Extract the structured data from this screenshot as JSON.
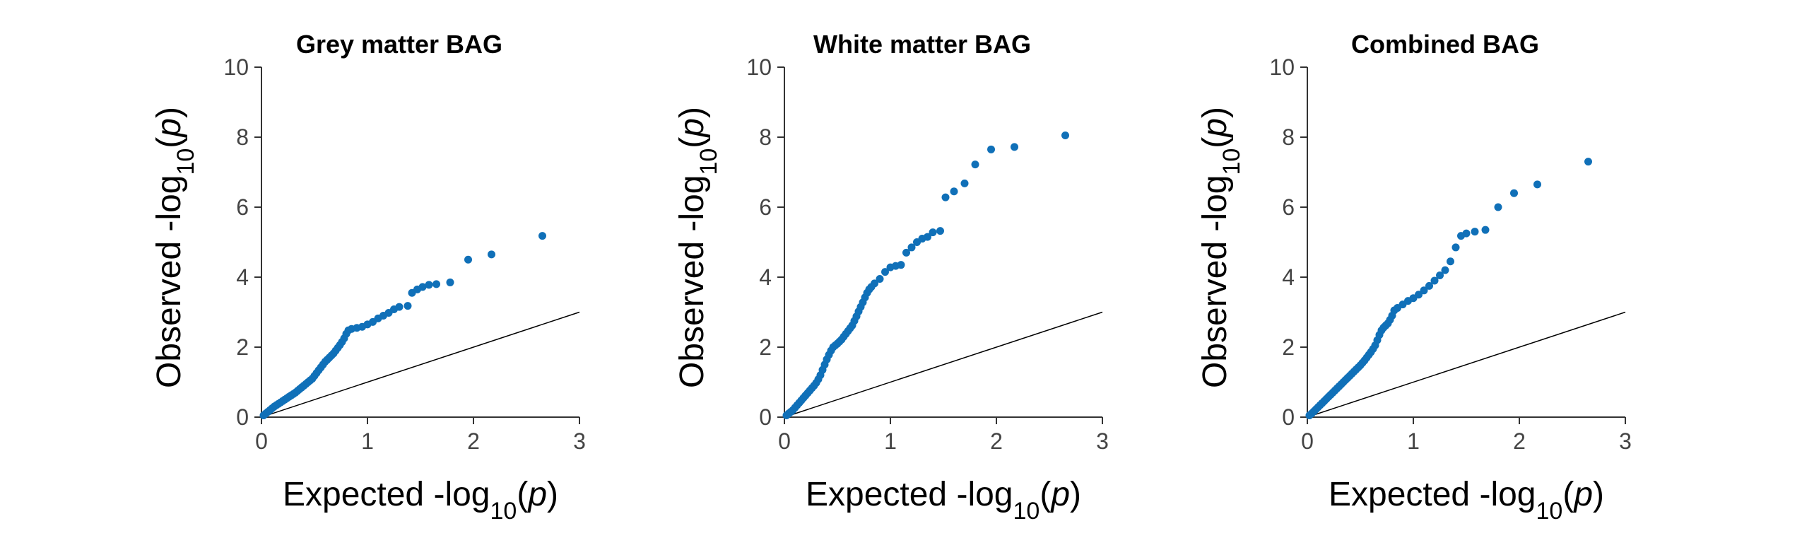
{
  "chart_data": [
    {
      "type": "scatter",
      "title": "Grey matter BAG",
      "xlabel": {
        "prefix": "Expected -log",
        "sub": "10",
        "open": "(",
        "var": "p",
        "close": ")"
      },
      "ylabel": {
        "prefix": "Observed -log",
        "sub": "10",
        "open": "(",
        "var": "p",
        "close": ")"
      },
      "xlim": [
        0,
        3
      ],
      "ylim": [
        0,
        10
      ],
      "xticks": [
        "0",
        "1",
        "2",
        "3"
      ],
      "yticks": [
        "0",
        "2",
        "4",
        "6",
        "8",
        "10"
      ],
      "reference_line": [
        [
          0,
          0
        ],
        [
          3,
          3
        ]
      ],
      "point_color": "#1070b8",
      "points": [
        [
          0.02,
          0.05
        ],
        [
          0.04,
          0.1
        ],
        [
          0.06,
          0.15
        ],
        [
          0.08,
          0.2
        ],
        [
          0.1,
          0.25
        ],
        [
          0.12,
          0.3
        ],
        [
          0.14,
          0.34
        ],
        [
          0.16,
          0.38
        ],
        [
          0.18,
          0.42
        ],
        [
          0.2,
          0.46
        ],
        [
          0.22,
          0.5
        ],
        [
          0.24,
          0.54
        ],
        [
          0.26,
          0.58
        ],
        [
          0.28,
          0.62
        ],
        [
          0.3,
          0.66
        ],
        [
          0.32,
          0.7
        ],
        [
          0.34,
          0.75
        ],
        [
          0.36,
          0.8
        ],
        [
          0.38,
          0.85
        ],
        [
          0.4,
          0.9
        ],
        [
          0.42,
          0.95
        ],
        [
          0.44,
          1.0
        ],
        [
          0.46,
          1.05
        ],
        [
          0.48,
          1.1
        ],
        [
          0.5,
          1.18
        ],
        [
          0.52,
          1.26
        ],
        [
          0.54,
          1.34
        ],
        [
          0.56,
          1.42
        ],
        [
          0.58,
          1.5
        ],
        [
          0.6,
          1.58
        ],
        [
          0.62,
          1.64
        ],
        [
          0.64,
          1.7
        ],
        [
          0.66,
          1.76
        ],
        [
          0.68,
          1.82
        ],
        [
          0.7,
          1.9
        ],
        [
          0.72,
          1.98
        ],
        [
          0.74,
          2.06
        ],
        [
          0.76,
          2.15
        ],
        [
          0.78,
          2.25
        ],
        [
          0.8,
          2.38
        ],
        [
          0.82,
          2.48
        ],
        [
          0.85,
          2.52
        ],
        [
          0.9,
          2.55
        ],
        [
          0.95,
          2.58
        ],
        [
          1.0,
          2.65
        ],
        [
          1.05,
          2.72
        ],
        [
          1.1,
          2.82
        ],
        [
          1.15,
          2.9
        ],
        [
          1.2,
          2.98
        ],
        [
          1.25,
          3.08
        ],
        [
          1.3,
          3.15
        ],
        [
          1.38,
          3.18
        ],
        [
          1.42,
          3.55
        ],
        [
          1.47,
          3.65
        ],
        [
          1.52,
          3.72
        ],
        [
          1.58,
          3.78
        ],
        [
          1.65,
          3.8
        ],
        [
          1.78,
          3.85
        ],
        [
          1.95,
          4.5
        ],
        [
          2.17,
          4.65
        ],
        [
          2.65,
          5.18
        ]
      ]
    },
    {
      "type": "scatter",
      "title": "White matter BAG",
      "xlabel": {
        "prefix": "Expected -log",
        "sub": "10",
        "open": "(",
        "var": "p",
        "close": ")"
      },
      "ylabel": {
        "prefix": "Observed -log",
        "sub": "10",
        "open": "(",
        "var": "p",
        "close": ")"
      },
      "xlim": [
        0,
        3
      ],
      "ylim": [
        0,
        10
      ],
      "xticks": [
        "0",
        "1",
        "2",
        "3"
      ],
      "yticks": [
        "0",
        "2",
        "4",
        "6",
        "8",
        "10"
      ],
      "reference_line": [
        [
          0,
          0
        ],
        [
          3,
          3
        ]
      ],
      "point_color": "#1070b8",
      "points": [
        [
          0.02,
          0.05
        ],
        [
          0.04,
          0.1
        ],
        [
          0.06,
          0.15
        ],
        [
          0.08,
          0.2
        ],
        [
          0.1,
          0.27
        ],
        [
          0.12,
          0.34
        ],
        [
          0.14,
          0.41
        ],
        [
          0.16,
          0.48
        ],
        [
          0.18,
          0.55
        ],
        [
          0.2,
          0.62
        ],
        [
          0.22,
          0.69
        ],
        [
          0.24,
          0.76
        ],
        [
          0.26,
          0.83
        ],
        [
          0.28,
          0.9
        ],
        [
          0.3,
          0.98
        ],
        [
          0.32,
          1.08
        ],
        [
          0.34,
          1.2
        ],
        [
          0.36,
          1.35
        ],
        [
          0.38,
          1.5
        ],
        [
          0.4,
          1.65
        ],
        [
          0.42,
          1.78
        ],
        [
          0.44,
          1.9
        ],
        [
          0.46,
          2.0
        ],
        [
          0.48,
          2.05
        ],
        [
          0.5,
          2.1
        ],
        [
          0.52,
          2.16
        ],
        [
          0.54,
          2.22
        ],
        [
          0.56,
          2.3
        ],
        [
          0.58,
          2.38
        ],
        [
          0.6,
          2.46
        ],
        [
          0.62,
          2.54
        ],
        [
          0.64,
          2.62
        ],
        [
          0.66,
          2.75
        ],
        [
          0.68,
          2.88
        ],
        [
          0.7,
          3.02
        ],
        [
          0.72,
          3.15
        ],
        [
          0.74,
          3.28
        ],
        [
          0.76,
          3.42
        ],
        [
          0.78,
          3.55
        ],
        [
          0.8,
          3.65
        ],
        [
          0.82,
          3.72
        ],
        [
          0.85,
          3.82
        ],
        [
          0.9,
          3.95
        ],
        [
          0.95,
          4.15
        ],
        [
          1.0,
          4.28
        ],
        [
          1.05,
          4.32
        ],
        [
          1.1,
          4.35
        ],
        [
          1.15,
          4.7
        ],
        [
          1.2,
          4.85
        ],
        [
          1.25,
          5.0
        ],
        [
          1.3,
          5.1
        ],
        [
          1.35,
          5.15
        ],
        [
          1.4,
          5.28
        ],
        [
          1.47,
          5.32
        ],
        [
          1.52,
          6.28
        ],
        [
          1.6,
          6.45
        ],
        [
          1.7,
          6.68
        ],
        [
          1.8,
          7.22
        ],
        [
          1.95,
          7.65
        ],
        [
          2.17,
          7.72
        ],
        [
          2.65,
          8.05
        ]
      ]
    },
    {
      "type": "scatter",
      "title": "Combined BAG",
      "xlabel": {
        "prefix": "Expected -log",
        "sub": "10",
        "open": "(",
        "var": "p",
        "close": ")"
      },
      "ylabel": {
        "prefix": "Observed -log",
        "sub": "10",
        "open": "(",
        "var": "p",
        "close": ")"
      },
      "xlim": [
        0,
        3
      ],
      "ylim": [
        0,
        10
      ],
      "xticks": [
        "0",
        "1",
        "2",
        "3"
      ],
      "yticks": [
        "0",
        "2",
        "4",
        "6",
        "8",
        "10"
      ],
      "reference_line": [
        [
          0,
          0
        ],
        [
          3,
          3
        ]
      ],
      "point_color": "#1070b8",
      "points": [
        [
          0.02,
          0.05
        ],
        [
          0.04,
          0.1
        ],
        [
          0.06,
          0.16
        ],
        [
          0.08,
          0.22
        ],
        [
          0.1,
          0.28
        ],
        [
          0.12,
          0.34
        ],
        [
          0.14,
          0.4
        ],
        [
          0.16,
          0.46
        ],
        [
          0.18,
          0.52
        ],
        [
          0.2,
          0.58
        ],
        [
          0.22,
          0.64
        ],
        [
          0.24,
          0.7
        ],
        [
          0.26,
          0.76
        ],
        [
          0.28,
          0.82
        ],
        [
          0.3,
          0.88
        ],
        [
          0.32,
          0.94
        ],
        [
          0.34,
          1.0
        ],
        [
          0.36,
          1.06
        ],
        [
          0.38,
          1.12
        ],
        [
          0.4,
          1.18
        ],
        [
          0.42,
          1.24
        ],
        [
          0.44,
          1.3
        ],
        [
          0.46,
          1.36
        ],
        [
          0.48,
          1.42
        ],
        [
          0.5,
          1.48
        ],
        [
          0.52,
          1.55
        ],
        [
          0.54,
          1.62
        ],
        [
          0.56,
          1.7
        ],
        [
          0.58,
          1.78
        ],
        [
          0.6,
          1.86
        ],
        [
          0.62,
          1.95
        ],
        [
          0.64,
          2.05
        ],
        [
          0.66,
          2.2
        ],
        [
          0.68,
          2.35
        ],
        [
          0.7,
          2.48
        ],
        [
          0.72,
          2.56
        ],
        [
          0.74,
          2.62
        ],
        [
          0.76,
          2.68
        ],
        [
          0.78,
          2.78
        ],
        [
          0.8,
          2.9
        ],
        [
          0.82,
          3.05
        ],
        [
          0.85,
          3.12
        ],
        [
          0.9,
          3.22
        ],
        [
          0.95,
          3.32
        ],
        [
          1.0,
          3.4
        ],
        [
          1.05,
          3.5
        ],
        [
          1.1,
          3.62
        ],
        [
          1.15,
          3.75
        ],
        [
          1.2,
          3.9
        ],
        [
          1.25,
          4.05
        ],
        [
          1.3,
          4.2
        ],
        [
          1.35,
          4.45
        ],
        [
          1.4,
          4.85
        ],
        [
          1.45,
          5.18
        ],
        [
          1.5,
          5.25
        ],
        [
          1.58,
          5.3
        ],
        [
          1.68,
          5.35
        ],
        [
          1.8,
          6.0
        ],
        [
          1.95,
          6.4
        ],
        [
          2.17,
          6.65
        ],
        [
          2.65,
          7.3
        ]
      ]
    }
  ]
}
